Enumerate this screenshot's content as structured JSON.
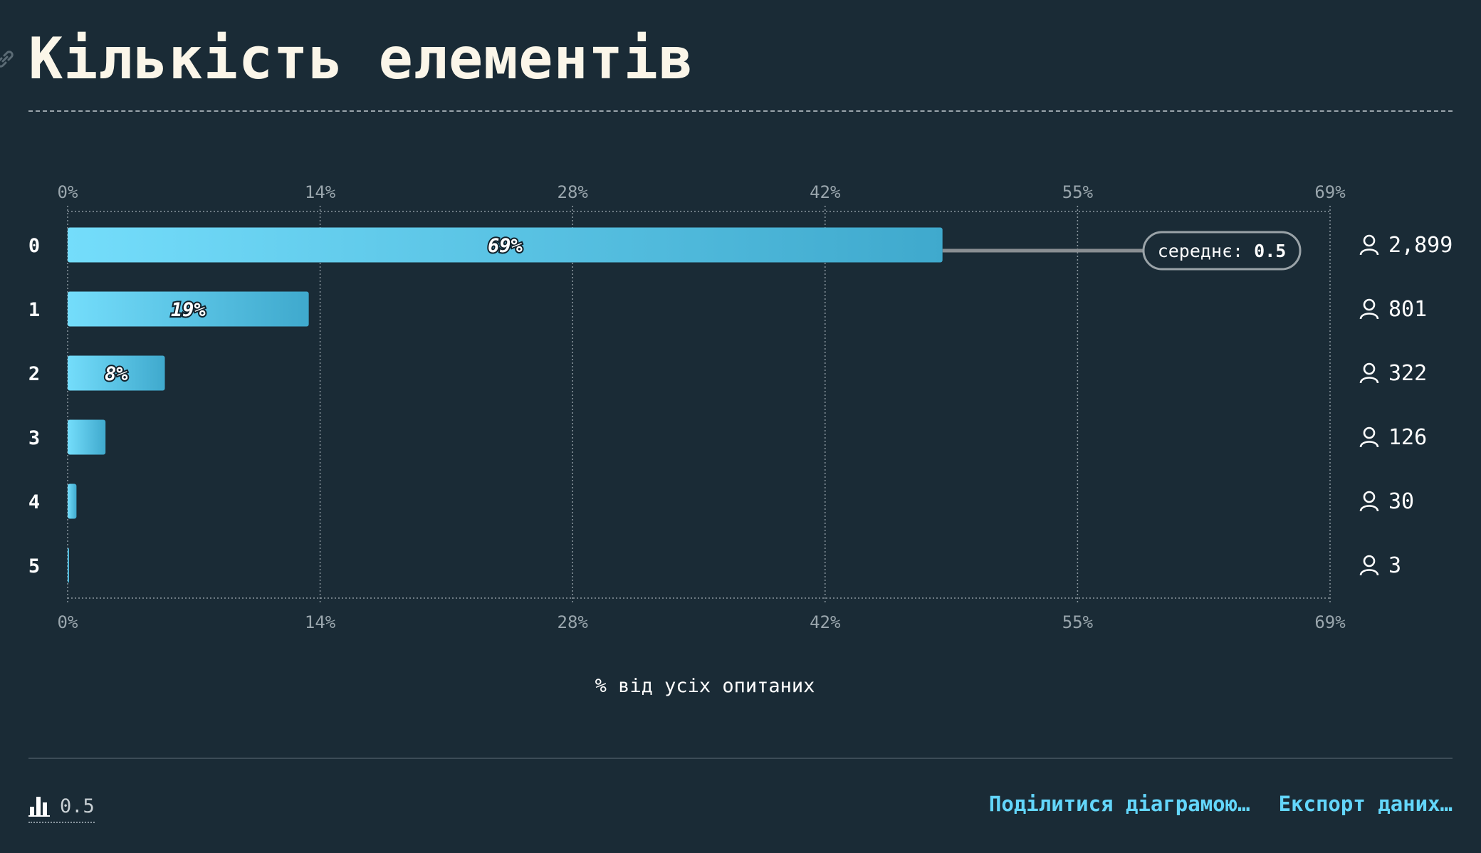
{
  "page": {
    "title": "Кількість елементів"
  },
  "chart_data": {
    "type": "bar",
    "orientation": "horizontal",
    "categories": [
      "0",
      "1",
      "2",
      "3",
      "4",
      "5"
    ],
    "percent": [
      69.3,
      19.1,
      7.7,
      3.0,
      0.7,
      0.1
    ],
    "value_labels": [
      "69%",
      "19%",
      "8%",
      "",
      "",
      ""
    ],
    "counts": [
      "2,899",
      "801",
      "322",
      "126",
      "30",
      "3"
    ],
    "x_ticks": [
      "0%",
      "14%",
      "28%",
      "42%",
      "55%",
      "69%"
    ],
    "xlim": [
      0,
      100
    ],
    "xlabel": "% від усіх опитаних",
    "mean_label": "середнє:",
    "mean_value": "0.5",
    "grid": true,
    "colors": {
      "bar_start": "#74ddfb",
      "bar_end": "#3fa9cd",
      "grid": "#8a969e",
      "text": "#ffffff",
      "tick": "#9aa6ad"
    }
  },
  "footer": {
    "average_value": "0.5",
    "share_label": "Поділитися діаграмою…",
    "export_label": "Експорт даних…"
  }
}
